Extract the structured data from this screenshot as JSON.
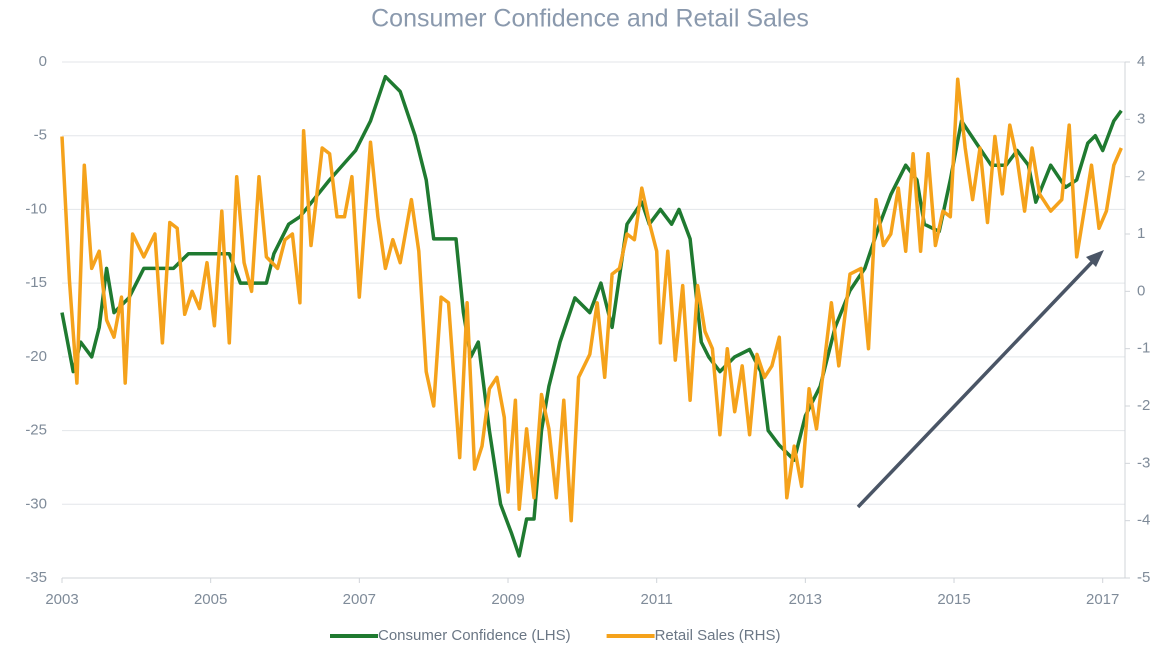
{
  "chart_data": {
    "type": "line",
    "title": "Consumer Confidence and Retail Sales",
    "xlim": [
      2003,
      2017.3
    ],
    "xticks": [
      2003,
      2005,
      2007,
      2009,
      2011,
      2013,
      2015,
      2017
    ],
    "ylim": [
      -35,
      0
    ],
    "yticks": [
      0,
      -5,
      -10,
      -15,
      -20,
      -25,
      -30,
      -35
    ],
    "y2lim": [
      -5,
      4
    ],
    "y2ticks": [
      4,
      3,
      2,
      1,
      0,
      -1,
      -2,
      -3,
      -4,
      -5
    ],
    "grid": true,
    "legend": "bottom",
    "series": [
      {
        "name": "Consumer Confidence (LHS)",
        "color": "#1f7a30",
        "x": [
          2003.0,
          2003.15,
          2003.25,
          2003.4,
          2003.5,
          2003.6,
          2003.7,
          2003.9,
          2004.1,
          2004.5,
          2004.7,
          2004.85,
          2005.25,
          2005.4,
          2005.75,
          2005.85,
          2006.05,
          2006.2,
          2006.6,
          2006.95,
          2007.15,
          2007.35,
          2007.55,
          2007.75,
          2007.9,
          2008.0,
          2008.3,
          2008.4,
          2008.5,
          2008.6,
          2008.75,
          2008.9,
          2009.05,
          2009.15,
          2009.25,
          2009.35,
          2009.45,
          2009.55,
          2009.7,
          2009.9,
          2010.1,
          2010.25,
          2010.4,
          2010.6,
          2010.8,
          2010.9,
          2011.05,
          2011.2,
          2011.3,
          2011.45,
          2011.6,
          2011.7,
          2011.85,
          2012.05,
          2012.25,
          2012.4,
          2012.5,
          2012.65,
          2012.85,
          2013.0,
          2013.2,
          2013.4,
          2013.6,
          2013.8,
          2014.0,
          2014.15,
          2014.35,
          2014.5,
          2014.6,
          2014.8,
          2014.95,
          2015.1,
          2015.3,
          2015.5,
          2015.7,
          2015.85,
          2016.0,
          2016.1,
          2016.3,
          2016.5,
          2016.65,
          2016.8,
          2016.9,
          2017.0,
          2017.15,
          2017.25
        ],
        "values": [
          -17,
          -21,
          -19,
          -20,
          -18,
          -14,
          -17,
          -16,
          -14,
          -14,
          -13,
          -13,
          -13,
          -15,
          -15,
          -13,
          -11,
          -10.5,
          -8,
          -6,
          -4,
          -1,
          -2,
          -5,
          -8,
          -12,
          -12,
          -17,
          -20,
          -19,
          -25,
          -30,
          -32,
          -33.5,
          -31,
          -31,
          -25,
          -22,
          -19,
          -16,
          -17,
          -15,
          -18,
          -11,
          -9.5,
          -11,
          -10,
          -11,
          -10,
          -12,
          -19,
          -20,
          -21,
          -20,
          -19.5,
          -21,
          -25,
          -26,
          -27,
          -24,
          -22,
          -18,
          -15.5,
          -14,
          -11,
          -9,
          -7,
          -8,
          -11,
          -11.5,
          -8,
          -4,
          -5.5,
          -7,
          -7,
          -6,
          -7,
          -9.5,
          -7,
          -8.5,
          -8,
          -5.5,
          -5,
          -6,
          -4,
          -3.3
        ]
      },
      {
        "name": "Retail Sales (RHS)",
        "color": "#f5a21b",
        "axis": "y2",
        "x": [
          2003.0,
          2003.1,
          2003.2,
          2003.3,
          2003.4,
          2003.5,
          2003.6,
          2003.7,
          2003.8,
          2003.85,
          2003.95,
          2004.1,
          2004.25,
          2004.35,
          2004.45,
          2004.55,
          2004.65,
          2004.75,
          2004.85,
          2004.95,
          2005.05,
          2005.15,
          2005.25,
          2005.35,
          2005.45,
          2005.55,
          2005.65,
          2005.75,
          2005.9,
          2006.0,
          2006.1,
          2006.2,
          2006.25,
          2006.35,
          2006.5,
          2006.6,
          2006.7,
          2006.8,
          2006.9,
          2007.0,
          2007.15,
          2007.25,
          2007.35,
          2007.45,
          2007.55,
          2007.7,
          2007.8,
          2007.9,
          2008.0,
          2008.1,
          2008.2,
          2008.35,
          2008.45,
          2008.55,
          2008.65,
          2008.75,
          2008.85,
          2008.95,
          2009.0,
          2009.1,
          2009.15,
          2009.25,
          2009.35,
          2009.45,
          2009.55,
          2009.65,
          2009.75,
          2009.85,
          2009.95,
          2010.1,
          2010.2,
          2010.3,
          2010.4,
          2010.5,
          2010.6,
          2010.7,
          2010.8,
          2010.9,
          2011.0,
          2011.05,
          2011.15,
          2011.25,
          2011.35,
          2011.45,
          2011.55,
          2011.65,
          2011.75,
          2011.85,
          2011.95,
          2012.05,
          2012.15,
          2012.25,
          2012.35,
          2012.45,
          2012.55,
          2012.65,
          2012.75,
          2012.85,
          2012.95,
          2013.05,
          2013.15,
          2013.25,
          2013.35,
          2013.45,
          2013.6,
          2013.75,
          2013.85,
          2013.95,
          2014.05,
          2014.15,
          2014.25,
          2014.35,
          2014.45,
          2014.55,
          2014.65,
          2014.75,
          2014.85,
          2014.95,
          2015.05,
          2015.15,
          2015.25,
          2015.35,
          2015.45,
          2015.55,
          2015.65,
          2015.75,
          2015.85,
          2015.95,
          2016.05,
          2016.15,
          2016.3,
          2016.45,
          2016.55,
          2016.65,
          2016.75,
          2016.85,
          2016.95,
          2017.05,
          2017.15,
          2017.25
        ],
        "values": [
          2.7,
          0.2,
          -1.6,
          2.2,
          0.4,
          0.7,
          -0.5,
          -0.8,
          -0.1,
          -1.6,
          1.0,
          0.6,
          1.0,
          -0.9,
          1.2,
          1.1,
          -0.4,
          0,
          -0.3,
          0.5,
          -0.6,
          1.4,
          -0.9,
          2.0,
          0.5,
          0,
          2.0,
          0.6,
          0.4,
          0.9,
          1.0,
          -0.2,
          2.8,
          0.8,
          2.5,
          2.4,
          1.3,
          1.3,
          2.0,
          -0.1,
          2.6,
          1.3,
          0.4,
          0.9,
          0.5,
          1.6,
          0.7,
          -1.4,
          -2.0,
          -0.1,
          -0.2,
          -2.9,
          -0.2,
          -3.1,
          -2.7,
          -1.7,
          -1.5,
          -2.2,
          -3.5,
          -1.9,
          -3.8,
          -2.4,
          -3.6,
          -1.8,
          -2.4,
          -3.6,
          -1.9,
          -4.0,
          -1.5,
          -1.1,
          -0.2,
          -1.5,
          0.3,
          0.4,
          1.0,
          0.9,
          1.8,
          1.2,
          0.7,
          -0.9,
          0.7,
          -1.2,
          0.1,
          -1.9,
          0.1,
          -0.7,
          -1.0,
          -2.5,
          -1.0,
          -2.1,
          -1.3,
          -2.5,
          -1.1,
          -1.5,
          -1.3,
          -0.8,
          -3.6,
          -2.7,
          -3.4,
          -1.7,
          -2.4,
          -1.3,
          -0.2,
          -1.3,
          0.3,
          0.4,
          -1.0,
          1.6,
          0.8,
          1.0,
          1.8,
          0.7,
          2.4,
          0.7,
          2.4,
          0.8,
          1.4,
          1.3,
          3.7,
          2.5,
          1.6,
          2.5,
          1.2,
          2.7,
          1.7,
          2.9,
          2.3,
          1.4,
          2.5,
          1.7,
          1.4,
          1.6,
          2.9,
          0.6,
          1.4,
          2.2,
          1.1,
          1.4,
          2.2,
          2.5
        ]
      }
    ]
  }
}
